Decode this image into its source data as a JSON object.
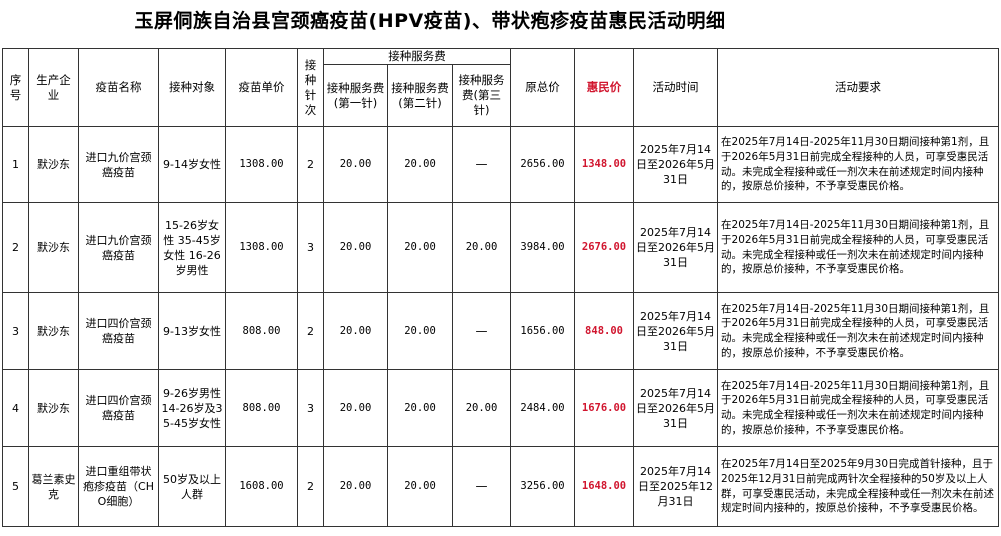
{
  "title": "玉屏侗族自治县宫颈癌疫苗(HPV疫苗)、带状疱疹疫苗惠民活动明细",
  "headers": {
    "seq": "序号",
    "producer": "生产企业",
    "vaccine_name": "疫苗名称",
    "target": "接种对象",
    "unit_price": "疫苗单价",
    "doses": "接种针次",
    "service_fee_group": "接种服务费",
    "fee1": "接种服务费(第一针)",
    "fee2": "接种服务费(第二针)",
    "fee3": "接种服务费(第三针)",
    "orig_total": "原总价",
    "discount_price": "惠民价",
    "period": "活动时间",
    "requirement": "活动要求"
  },
  "accent_color": "#d1162f",
  "rows": [
    {
      "seq": "1",
      "producer": "默沙东",
      "vaccine_name": "进口九价宫颈癌疫苗",
      "target": "9-14岁女性",
      "unit_price": "1308.00",
      "doses": "2",
      "fee1": "20.00",
      "fee2": "20.00",
      "fee3": "—",
      "orig_total": "2656.00",
      "discount_price": "1348.00",
      "period": "2025年7月14日至2026年5月31日",
      "requirement": "在2025年7月14日-2025年11月30日期间接种第1剂，且于2026年5月31日前完成全程接种的人员，可享受惠民活动。未完成全程接种或任一剂次未在前述规定时间内接种的，按原总价接种，不予享受惠民价格。"
    },
    {
      "seq": "2",
      "producer": "默沙东",
      "vaccine_name": "进口九价宫颈癌疫苗",
      "target": "15-26岁女性 35-45岁女性 16-26岁男性",
      "unit_price": "1308.00",
      "doses": "3",
      "fee1": "20.00",
      "fee2": "20.00",
      "fee3": "20.00",
      "orig_total": "3984.00",
      "discount_price": "2676.00",
      "period": "2025年7月14日至2026年5月31日",
      "requirement": "在2025年7月14日-2025年11月30日期间接种第1剂，且于2026年5月31日前完成全程接种的人员，可享受惠民活动。未完成全程接种或任一剂次未在前述规定时间内接种的，按原总价接种，不予享受惠民价格。"
    },
    {
      "seq": "3",
      "producer": "默沙东",
      "vaccine_name": "进口四价宫颈癌疫苗",
      "target": "9-13岁女性",
      "unit_price": "808.00",
      "doses": "2",
      "fee1": "20.00",
      "fee2": "20.00",
      "fee3": "—",
      "orig_total": "1656.00",
      "discount_price": "848.00",
      "period": "2025年7月14日至2026年5月31日",
      "requirement": "在2025年7月14日-2025年11月30日期间接种第1剂，且于2026年5月31日前完成全程接种的人员，可享受惠民活动。未完成全程接种或任一剂次未在前述规定时间内接种的，按原总价接种，不予享受惠民价格。"
    },
    {
      "seq": "4",
      "producer": "默沙东",
      "vaccine_name": "进口四价宫颈癌疫苗",
      "target": "9-26岁男性 14-26岁及35-45岁女性",
      "unit_price": "808.00",
      "doses": "3",
      "fee1": "20.00",
      "fee2": "20.00",
      "fee3": "20.00",
      "orig_total": "2484.00",
      "discount_price": "1676.00",
      "period": "2025年7月14日至2026年5月31日",
      "requirement": "在2025年7月14日-2025年11月30日期间接种第1剂，且于2026年5月31日前完成全程接种的人员，可享受惠民活动。未完成全程接种或任一剂次未在前述规定时间内接种的，按原总价接种，不予享受惠民价格。"
    },
    {
      "seq": "5",
      "producer": "葛兰素史克",
      "vaccine_name": "进口重组带状疱疹疫苗（CHO细胞）",
      "target": "50岁及以上人群",
      "unit_price": "1608.00",
      "doses": "2",
      "fee1": "20.00",
      "fee2": "20.00",
      "fee3": "—",
      "orig_total": "3256.00",
      "discount_price": "1648.00",
      "period": "2025年7月14日至2025年12月31日",
      "requirement": "在2025年7月14日至2025年9月30日完成首针接种，且于2025年12月31日前完成两针次全程接种的50岁及以上人群，可享受惠民活动，未完成全程接种或任一剂次未在前述规定时间内接种的，按原总价接种，不予享受惠民价格。"
    }
  ]
}
